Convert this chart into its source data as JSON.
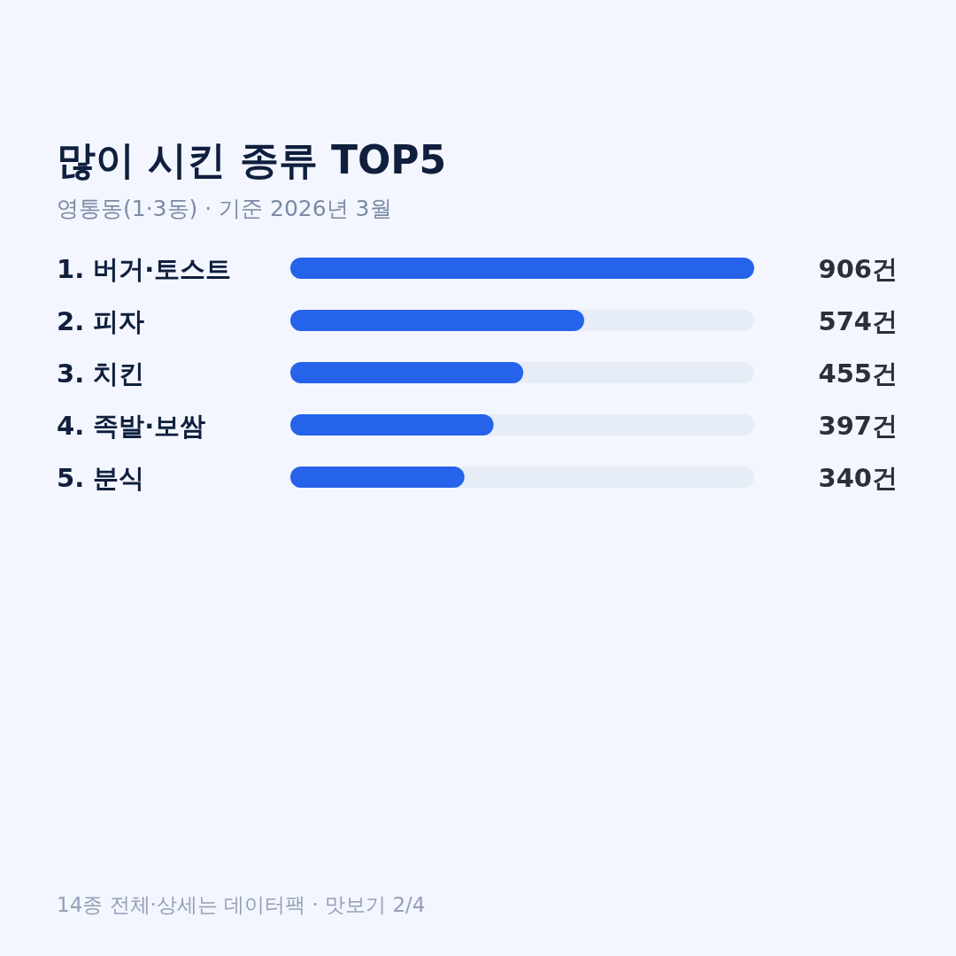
{
  "chart_data": {
    "type": "bar",
    "orientation": "horizontal",
    "title": "많이 시킨 종류 TOP5",
    "subtitle": "영통동(1·3동) · 기준 2026년 3월",
    "categories": [
      "1. 버거·토스트",
      "2. 피자",
      "3. 치킨",
      "4. 족발·보쌈",
      "5. 분식"
    ],
    "values": [
      906,
      574,
      455,
      397,
      340
    ],
    "color": "#2563eb",
    "value_labels": [
      "906건",
      "574건",
      "455건",
      "397건",
      "340건"
    ],
    "xlim": [
      0,
      906
    ],
    "annotations": [
      "14종 전체·상세는 데이터팩 · 맛보기 2/4"
    ]
  }
}
